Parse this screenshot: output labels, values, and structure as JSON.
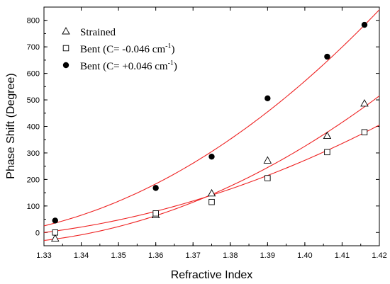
{
  "chart_data": {
    "type": "scatter",
    "xlabel": "Refractive Index",
    "ylabel": "Phase Shift (Degree)",
    "xlim": [
      1.33,
      1.42
    ],
    "ylim": [
      -50,
      850
    ],
    "x_ticks": [
      "1.33",
      "1.34",
      "1.35",
      "1.36",
      "1.37",
      "1.38",
      "1.39",
      "1.40",
      "1.41",
      "1.42"
    ],
    "y_ticks": [
      "0",
      "100",
      "200",
      "300",
      "400",
      "500",
      "600",
      "700",
      "800"
    ],
    "legend_position": "top-left",
    "series": [
      {
        "name": "Strained",
        "marker": "open-triangle",
        "x": [
          1.333,
          1.36,
          1.375,
          1.39,
          1.406,
          1.416
        ],
        "y": [
          -22,
          66,
          148,
          272,
          365,
          487
        ]
      },
      {
        "name": "Bent (C= -0.046 cm",
        "name_sup": "-1",
        "name_suffix": ")",
        "marker": "open-square",
        "x": [
          1.333,
          1.36,
          1.375,
          1.39,
          1.406,
          1.416
        ],
        "y": [
          0,
          72,
          115,
          205,
          303,
          378
        ]
      },
      {
        "name": "Bent (C= +0.046 cm",
        "name_sup": "-1",
        "name_suffix": ")",
        "marker": "filled-circle",
        "x": [
          1.333,
          1.36,
          1.375,
          1.39,
          1.406,
          1.416
        ],
        "y": [
          45,
          168,
          286,
          506,
          663,
          783
        ]
      }
    ],
    "fit_curves": [
      {
        "type": "quadratic",
        "for_series": "Strained",
        "points": [
          [
            1.33,
            -30
          ],
          [
            1.39,
            245
          ],
          [
            1.42,
            515
          ]
        ]
      },
      {
        "type": "quadratic",
        "for_series": "Bent (C= -0.046 cm-1)",
        "points": [
          [
            1.33,
            0
          ],
          [
            1.39,
            215
          ],
          [
            1.42,
            405
          ]
        ]
      },
      {
        "type": "quadratic",
        "for_series": "Bent (C= +0.046 cm-1)",
        "points": [
          [
            1.33,
            25
          ],
          [
            1.39,
            455
          ],
          [
            1.42,
            840
          ]
        ]
      }
    ],
    "colors": {
      "fit_line": "#ee2222",
      "markers": "#000000",
      "axes": "#000000"
    }
  }
}
